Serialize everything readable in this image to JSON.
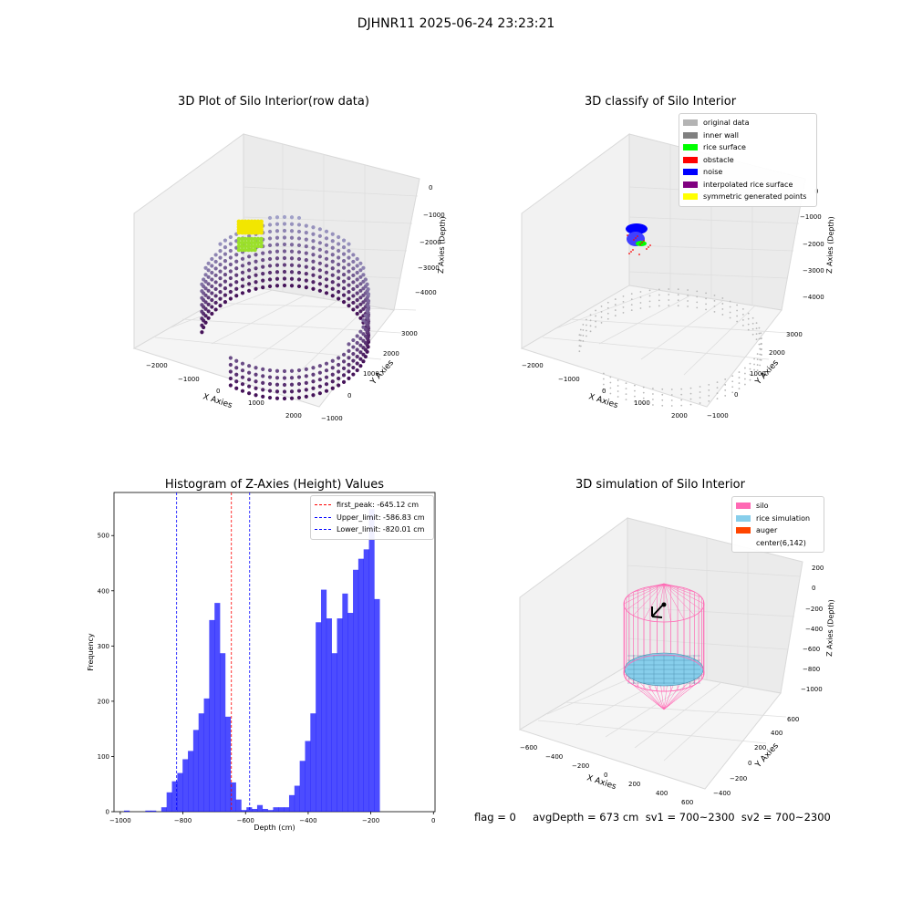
{
  "suptitle": "DJHNR11 2025-06-24 23:23:21",
  "panel1": {
    "title": "3D Plot of Silo Interior(row data)",
    "xlabel": "X Axies",
    "ylabel": "Y Axies",
    "zlabel": "Z Axies (Depth)",
    "xticks": [
      "−2000",
      "−1000",
      "0",
      "1000",
      "2000"
    ],
    "yticks": [
      "−1000",
      "0",
      "1000",
      "2000",
      "3000"
    ],
    "zticks": [
      "0",
      "−1000",
      "−2000",
      "−3000",
      "−4000"
    ]
  },
  "panel2": {
    "title": "3D classify of Silo Interior",
    "xlabel": "X Axies",
    "ylabel": "Y Axies",
    "zlabel": "Z Axies (Depth)",
    "xticks": [
      "−2000",
      "−1000",
      "0",
      "1000",
      "2000"
    ],
    "yticks": [
      "−1000",
      "0",
      "1000",
      "2000",
      "3000"
    ],
    "zticks": [
      "0",
      "−1000",
      "−2000",
      "−3000",
      "−4000"
    ],
    "legend": [
      {
        "label": "original data",
        "color": "#b4b4b4"
      },
      {
        "label": "inner wall",
        "color": "#808080"
      },
      {
        "label": "rice surface",
        "color": "#00ff00"
      },
      {
        "label": "obstacle",
        "color": "#ff0000"
      },
      {
        "label": "noise",
        "color": "#0000ff"
      },
      {
        "label": "interpolated rice surface",
        "color": "#800080"
      },
      {
        "label": "symmetric generated points",
        "color": "#ffff00"
      }
    ]
  },
  "panel4": {
    "title": "3D simulation of Silo Interior",
    "xlabel": "X Axies",
    "ylabel": "Y Axies",
    "zlabel": "Z Axies (Depth)",
    "xticks": [
      "−600",
      "−400",
      "−200",
      "0",
      "200",
      "400",
      "600"
    ],
    "yticks": [
      "−400",
      "−200",
      "0",
      "200",
      "400",
      "600"
    ],
    "zticks": [
      "200",
      "0",
      "−200",
      "−400",
      "−600",
      "−800",
      "−1000"
    ],
    "legend": [
      {
        "label": "silo",
        "color": "#ff69b4"
      },
      {
        "label": "rice simulation",
        "color": "#87ceeb"
      },
      {
        "label": "auger",
        "color": "#ff4500"
      },
      {
        "label": "center(6,142)",
        "color": ""
      }
    ]
  },
  "chart_data": {
    "type": "bar",
    "title": "Histogram of Z-Axies (Height) Values",
    "xlabel": "Depth (cm)",
    "ylabel": "Frequency",
    "bar_color": "#0000ff",
    "xlim": [
      -1020,
      5
    ],
    "ylim": [
      0,
      578
    ],
    "xticks": [
      -1000,
      -800,
      -600,
      -400,
      -200,
      0
    ],
    "xtick_labels": [
      "−1000",
      "−800",
      "−600",
      "−400",
      "−200",
      "0"
    ],
    "yticks": [
      0,
      100,
      200,
      300,
      400,
      500
    ],
    "bin_width": 17,
    "bin_start": -988,
    "values": [
      2,
      0,
      0,
      0,
      2,
      2,
      0,
      8,
      35,
      55,
      70,
      95,
      110,
      148,
      178,
      205,
      347,
      378,
      287,
      172,
      53,
      22,
      3,
      8,
      5,
      12,
      5,
      3,
      8,
      8,
      8,
      30,
      47,
      92,
      128,
      178,
      343,
      402,
      350,
      287,
      350,
      395,
      360,
      438,
      458,
      475,
      548,
      385
    ],
    "lines": [
      {
        "label": "first_peak: -645.12 cm",
        "x": -645.12,
        "color": "#ff0000"
      },
      {
        "label": "Upper_limit: -586.83 cm",
        "x": -586.83,
        "color": "#0000ff"
      },
      {
        "label": "Lower_limit: -820.01 cm",
        "x": -820.01,
        "color": "#0000ff"
      }
    ]
  },
  "footer": "flag = 0     avgDepth = 673 cm  sv1 = 700~2300  sv2 = 700~2300"
}
